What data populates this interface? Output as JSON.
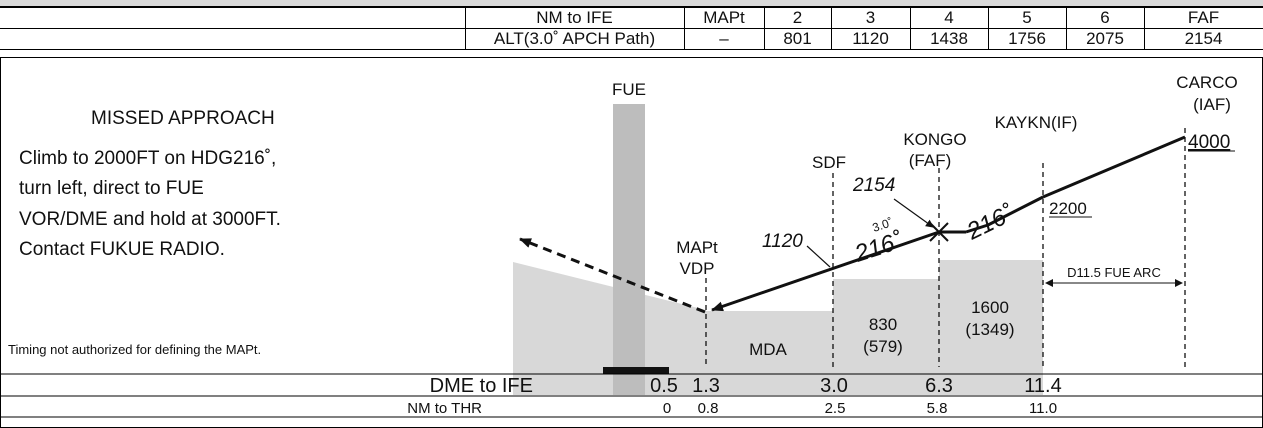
{
  "header_table": {
    "row1_label": "NM to IFE",
    "row2_label": "ALT(3.0˚ APCH Path)",
    "columns": [
      "MAPt",
      "2",
      "3",
      "4",
      "5",
      "6",
      "FAF"
    ],
    "altitudes": [
      "–",
      "801",
      "1120",
      "1438",
      "1756",
      "2075",
      "2154"
    ]
  },
  "missed_approach": {
    "title": "MISSED APPROACH",
    "lines": [
      "Climb to 2000FT on HDG216˚,",
      "turn left, direct to FUE",
      "VOR/DME and hold at 3000FT.",
      "Contact FUKUE RADIO."
    ],
    "note": "Timing not authorized for defining the MAPt."
  },
  "fixes": {
    "fue": "FUE",
    "mapt": "MAPt",
    "vdp": "VDP",
    "sdf": "SDF",
    "kongo": "KONGO",
    "kongo_sub": "(FAF)",
    "kaykn": "KAYKN(IF)",
    "carco": "CARCO",
    "carco_sub": "(IAF)"
  },
  "altitude_labels": {
    "carco_alt": "4000",
    "kaykn_alt": "2200",
    "faf_alt": "2154",
    "sdf_alt": "1120",
    "glide_angle": "3.0˚"
  },
  "course_labels": {
    "inbound_1": "216˚",
    "inbound_2": "216˚"
  },
  "arc_label": "D11.5 FUE ARC",
  "segments": {
    "mda": "MDA",
    "seg_sdf_alt": "830",
    "seg_sdf_hat": "(579)",
    "seg_faf_alt": "1600",
    "seg_faf_hat": "(1349)"
  },
  "bottom_table": {
    "dme_label": "DME to IFE",
    "dme_values": [
      "0.5",
      "1.3",
      "3.0",
      "6.3",
      "11.4"
    ],
    "thr_label": "NM to THR",
    "thr_values": [
      "0",
      "0.8",
      "2.5",
      "5.8",
      "11.0"
    ]
  }
}
